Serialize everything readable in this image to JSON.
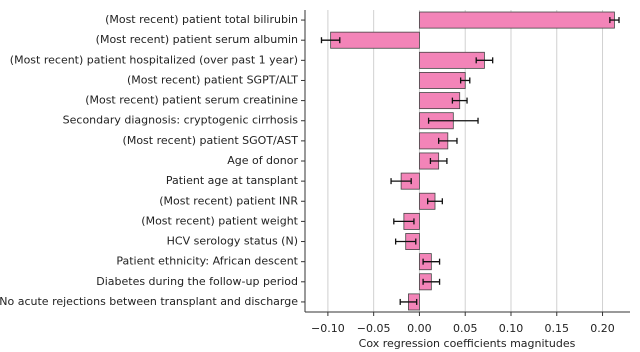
{
  "chart_data": {
    "type": "barh",
    "xlabel": "Cox regression coefficients magnitudes",
    "categories": [
      "(Most recent) patient total bilirubin",
      "(Most recent) patient serum albumin",
      "(Most recent) patient hospitalized (over past 1 year)",
      "(Most recent) patient SGPT/ALT",
      "(Most recent) patient serum creatinine",
      "Secondary diagnosis: cryptogenic cirrhosis",
      "(Most recent) patient SGOT/AST",
      "Age of donor",
      "Patient age at tansplant",
      "(Most recent) patient INR",
      "(Most recent) patient weight",
      "HCV serology status (N)",
      "Patient ethnicity: African descent",
      "Diabetes during the follow-up period",
      "No acute rejections between transplant and discharge"
    ],
    "values": [
      0.213,
      -0.097,
      0.071,
      0.05,
      0.044,
      0.037,
      0.031,
      0.021,
      -0.02,
      0.017,
      -0.017,
      -0.015,
      0.013,
      0.013,
      -0.012
    ],
    "errors": [
      0.005,
      0.01,
      0.009,
      0.005,
      0.008,
      0.027,
      0.01,
      0.009,
      0.011,
      0.008,
      0.011,
      0.011,
      0.009,
      0.009,
      0.009
    ],
    "color": "#f384b8",
    "edgecolor": "#444444",
    "xlim": [
      -0.125,
      0.23
    ],
    "xticks": [
      {
        "value": -0.1,
        "label": "−0.10"
      },
      {
        "value": -0.05,
        "label": "−0.05"
      },
      {
        "value": 0,
        "label": "0.00"
      },
      {
        "value": 0.05,
        "label": "0.05"
      },
      {
        "value": 0.1,
        "label": "0.10"
      },
      {
        "value": 0.15,
        "label": "0.15"
      },
      {
        "value": 0.2,
        "label": "0.20"
      }
    ],
    "grid": true
  }
}
